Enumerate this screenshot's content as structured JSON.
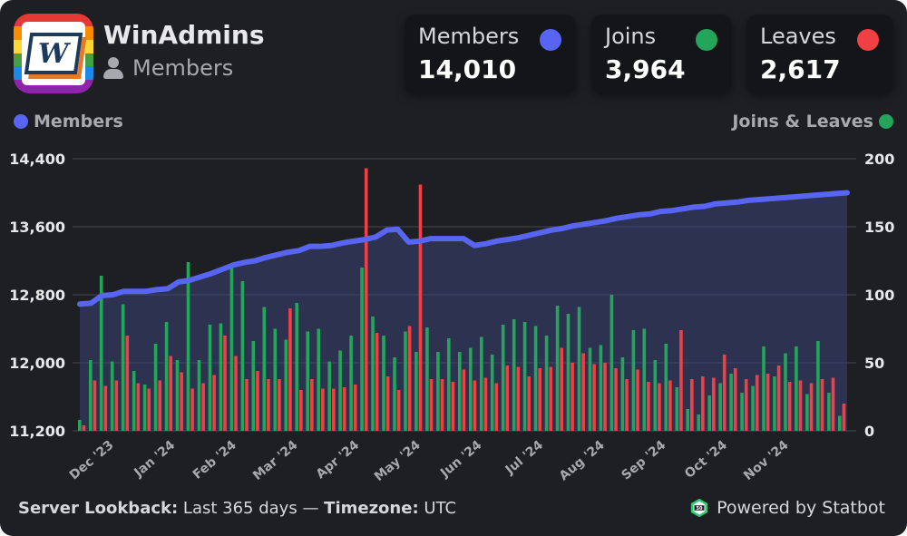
{
  "header": {
    "server_name": "WinAdmins",
    "logo_letter": "W",
    "subtitle": "Members"
  },
  "stats": [
    {
      "label": "Members",
      "value": "14,010",
      "color": "#5865f2"
    },
    {
      "label": "Joins",
      "value": "3,964",
      "color": "#23a55a"
    },
    {
      "label": "Leaves",
      "value": "2,617",
      "color": "#f23f43"
    }
  ],
  "legend": {
    "left_label": "Members",
    "right_label": "Joins & Leaves"
  },
  "footer": {
    "lookback_label": "Server Lookback:",
    "lookback_value": "Last 365 days",
    "separator": "—",
    "timezone_label": "Timezone:",
    "timezone_value": "UTC",
    "powered_by": "Powered by Statbot",
    "statbot_badge": "50"
  },
  "chart_data": {
    "type": "line",
    "title": "",
    "members": {
      "name": "Members",
      "color": "#5865f2",
      "ylim": [
        11200,
        14400
      ],
      "ticks": [
        "11,200",
        "12,000",
        "12,800",
        "13,600",
        "14,400"
      ],
      "tick_values": [
        11200,
        12000,
        12800,
        13600,
        14400
      ],
      "values": [
        12690,
        12700,
        12790,
        12800,
        12840,
        12840,
        12840,
        12860,
        12870,
        12950,
        12970,
        13010,
        13050,
        13100,
        13150,
        13180,
        13200,
        13240,
        13270,
        13300,
        13320,
        13370,
        13370,
        13380,
        13410,
        13430,
        13450,
        13480,
        13560,
        13570,
        13420,
        13430,
        13460,
        13460,
        13460,
        13460,
        13380,
        13400,
        13430,
        13450,
        13470,
        13500,
        13530,
        13560,
        13580,
        13610,
        13630,
        13650,
        13670,
        13700,
        13720,
        13740,
        13750,
        13780,
        13790,
        13810,
        13830,
        13840,
        13870,
        13880,
        13890,
        13910,
        13920,
        13930,
        13940,
        13950,
        13960,
        13970,
        13980,
        13990,
        14000
      ]
    },
    "joins_leaves": {
      "ylim": [
        0,
        200
      ],
      "ticks": [
        "0",
        "50",
        "100",
        "150",
        "200"
      ],
      "tick_values": [
        0,
        50,
        100,
        150,
        200
      ]
    },
    "x_labels": [
      "Dec '23",
      "Jan '24",
      "Feb '24",
      "Mar '24",
      "Apr '24",
      "May '24",
      "Jun '24",
      "Jul '24",
      "Aug '24",
      "Sep '24",
      "Oct '24",
      "Nov '24"
    ],
    "series": [
      {
        "name": "Joins",
        "color": "#23a55a",
        "values": [
          8,
          52,
          114,
          51,
          93,
          44,
          34,
          64,
          80,
          52,
          124,
          52,
          78,
          79,
          122,
          110,
          66,
          91,
          75,
          67,
          94,
          73,
          75,
          51,
          59,
          70,
          120,
          84,
          70,
          54,
          73,
          58,
          76,
          58,
          68,
          58,
          61,
          69,
          56,
          78,
          82,
          80,
          77,
          70,
          92,
          86,
          91,
          61,
          63,
          100,
          54,
          74,
          75,
          52,
          64,
          32,
          16,
          12,
          26,
          35,
          42,
          28,
          33,
          62,
          40,
          57,
          62,
          27,
          66,
          28,
          11
        ]
      },
      {
        "name": "Leaves",
        "color": "#f23f43",
        "values": [
          4,
          37,
          33,
          37,
          70,
          35,
          31,
          37,
          55,
          43,
          31,
          35,
          41,
          70,
          55,
          38,
          44,
          38,
          38,
          90,
          30,
          38,
          31,
          31,
          32,
          34,
          193,
          72,
          40,
          30,
          77,
          181,
          38,
          38,
          36,
          45,
          37,
          39,
          35,
          48,
          47,
          40,
          46,
          47,
          61,
          50,
          57,
          49,
          50,
          46,
          38,
          45,
          36,
          35,
          37,
          74,
          38,
          40,
          39,
          56,
          46,
          38,
          41,
          42,
          48,
          36,
          37,
          35,
          38,
          39,
          20
        ]
      }
    ]
  }
}
